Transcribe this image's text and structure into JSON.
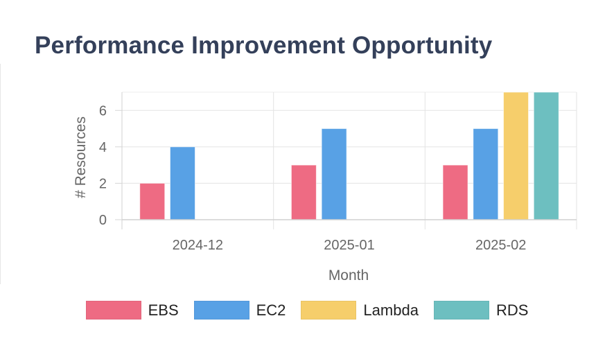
{
  "title": "Performance Improvement Opportunity",
  "chart_data": {
    "type": "bar",
    "categories": [
      "2024-12",
      "2025-01",
      "2025-02"
    ],
    "series": [
      {
        "name": "EBS",
        "values": [
          2,
          3,
          3
        ],
        "color": "#ee6b83"
      },
      {
        "name": "EC2",
        "values": [
          4,
          5,
          5
        ],
        "color": "#58a1e5"
      },
      {
        "name": "Lambda",
        "values": [
          0,
          0,
          7
        ],
        "color": "#f6ce6b"
      },
      {
        "name": "RDS",
        "values": [
          0,
          0,
          7
        ],
        "color": "#6dbfc0"
      }
    ],
    "xlabel": "Month",
    "ylabel": "# Resources",
    "ylim": [
      0,
      7
    ],
    "yticks": [
      "0",
      "2",
      "4",
      "6"
    ],
    "grid": true,
    "legend_position": "bottom"
  }
}
